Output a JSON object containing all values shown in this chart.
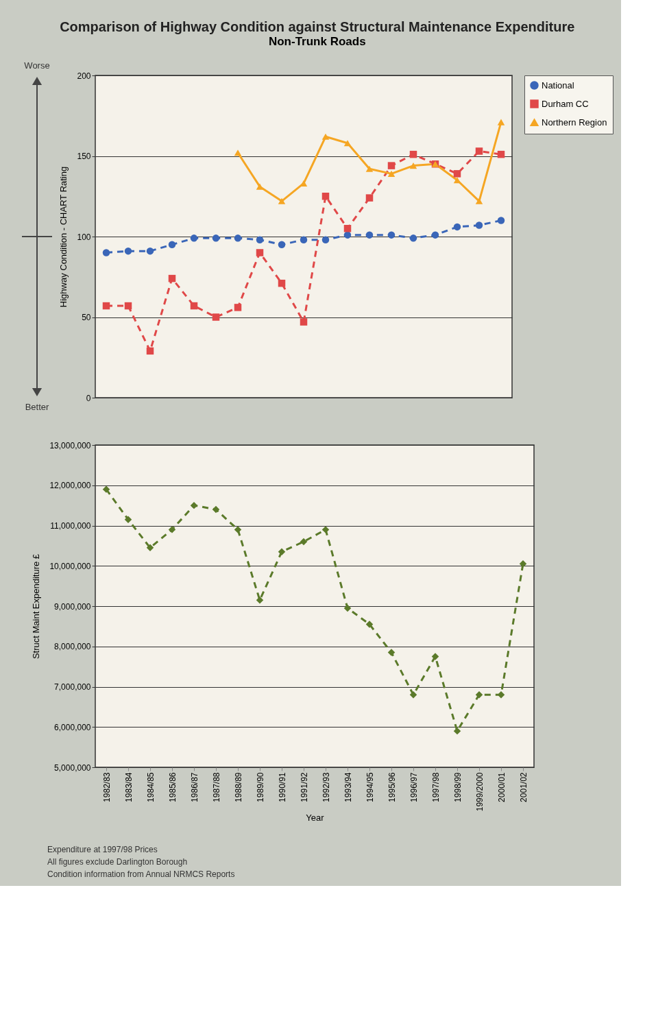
{
  "chart_data": [
    {
      "type": "line",
      "title": "Comparison of Highway Condition against Structural Maintenance Expenditure",
      "subtitle": "Non-Trunk Roads",
      "categories": [
        null,
        null,
        null,
        null,
        null,
        null,
        null,
        null,
        null,
        null,
        null,
        null,
        null,
        null,
        null,
        null,
        null,
        null,
        null
      ],
      "ylabel": "Highway Condition - CHART Rating",
      "ylim": [
        0,
        200
      ],
      "yticks": [
        0,
        50,
        100,
        150,
        200
      ],
      "grid": "y",
      "legend": "right",
      "tick_labels": "y",
      "annotations": [
        "Worse",
        "Better"
      ],
      "series": [
        {
          "name": "National",
          "color": "#3a66b8",
          "marker": "circle",
          "line_style": "dashed",
          "values": [
            90,
            91,
            91,
            95,
            99,
            99,
            99,
            98,
            95,
            98,
            98,
            101,
            101,
            101,
            99,
            101,
            106,
            107,
            110
          ]
        },
        {
          "name": "Durham CC",
          "color": "#e04848",
          "marker": "square",
          "line_style": "dashed",
          "values": [
            57,
            57,
            29,
            74,
            57,
            50,
            56,
            90,
            71,
            47,
            125,
            105,
            124,
            144,
            151,
            145,
            139,
            153,
            151
          ]
        },
        {
          "name": "Northern Region",
          "color": "#f5a623",
          "marker": "triangle",
          "line_style": "solid",
          "values": [
            null,
            null,
            null,
            null,
            null,
            null,
            152,
            131,
            122,
            133,
            162,
            158,
            142,
            139,
            144,
            145,
            135,
            122,
            171
          ]
        }
      ]
    },
    {
      "type": "line",
      "categories": [
        "1982/83",
        "1983/84",
        "1984/85",
        "1985/86",
        "1986/87",
        "1987/88",
        "1988/89",
        "1989/90",
        "1990/91",
        "1991/92",
        "1992/93",
        "1993/94",
        "1994/95",
        "1995/96",
        "1996/97",
        "1997/98",
        "1998/99",
        "1999/2000",
        "2000/01",
        "2001/02"
      ],
      "xlabel": "Year",
      "ylabel": "Struct Maint Expenditure £",
      "ylim": [
        5000000,
        13000000
      ],
      "yticks": [
        {
          "value": 5000000,
          "label": "5,000,000"
        },
        {
          "value": 6000000,
          "label": "6,000,000"
        },
        {
          "value": 7000000,
          "label": "7,000,000"
        },
        {
          "value": 8000000,
          "label": "8,000,000"
        },
        {
          "value": 9000000,
          "label": "9,000,000"
        },
        {
          "value": 10000000,
          "label": "10,000,000"
        },
        {
          "value": 11000000,
          "label": "11,000,000"
        },
        {
          "value": 12000000,
          "label": "12,000,000"
        },
        {
          "value": 13000000,
          "label": "13,000,000"
        }
      ],
      "grid": "y",
      "annotations": [
        "Expenditure at 1997/98 Prices",
        "All figures exclude Darlington Borough",
        "Condition information from Annual NRMCS Reports"
      ],
      "series": [
        {
          "color": "#5b7a2a",
          "marker": "diamond",
          "line_style": "dashed",
          "values": [
            11900000,
            11150000,
            10450000,
            10900000,
            11500000,
            11400000,
            10900000,
            9150000,
            10350000,
            10600000,
            10900000,
            8950000,
            8550000,
            7850000,
            6800000,
            7750000,
            5900000,
            6800000,
            6800000,
            10050000
          ]
        }
      ]
    }
  ]
}
